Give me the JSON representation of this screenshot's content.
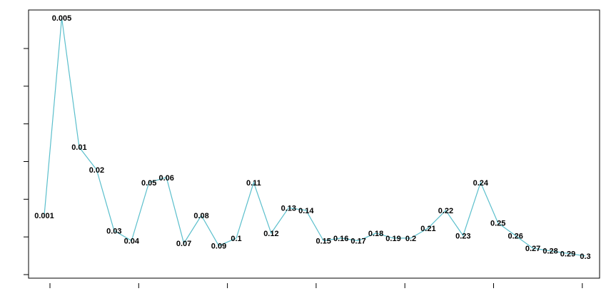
{
  "chart_data": {
    "type": "line",
    "title": "",
    "xlabel": "",
    "ylabel": "",
    "grid": false,
    "legend": "none",
    "axis_tick_labels_visible": false,
    "line_color": "#5bbfcc",
    "xlim": [
      0,
      31
    ],
    "ylim": [
      0,
      1
    ],
    "x_ticks": [
      0,
      5,
      10,
      15,
      20,
      25,
      30
    ],
    "y_ticks": [
      0.06,
      0.2,
      0.34,
      0.48,
      0.62,
      0.76,
      0.9
    ],
    "series": [
      {
        "labels": [
          "0.001",
          "0.005",
          "0.01",
          "0.02",
          "0.03",
          "0.04",
          "0.05",
          "0.06",
          "0.07",
          "0.08",
          "0.09",
          "0.1",
          "0.11",
          "0.12",
          "0.13",
          "0.14",
          "0.15",
          "0.16",
          "0.17",
          "0.18",
          "0.19",
          "0.2",
          "0.21",
          "0.22",
          "0.23",
          "0.24",
          "0.25",
          "0.26",
          "0.27",
          "0.28",
          "0.29",
          "0.3"
        ],
        "x": [
          0,
          1,
          2,
          3,
          4,
          5,
          6,
          7,
          8,
          9,
          10,
          11,
          12,
          13,
          14,
          15,
          16,
          17,
          18,
          19,
          20,
          21,
          22,
          23,
          24,
          25,
          26,
          27,
          28,
          29,
          30,
          31
        ],
        "y": [
          0.2,
          0.98,
          0.47,
          0.38,
          0.14,
          0.1,
          0.33,
          0.35,
          0.09,
          0.2,
          0.08,
          0.11,
          0.33,
          0.13,
          0.23,
          0.22,
          0.1,
          0.11,
          0.1,
          0.13,
          0.11,
          0.11,
          0.15,
          0.22,
          0.12,
          0.33,
          0.17,
          0.12,
          0.07,
          0.06,
          0.05,
          0.04
        ]
      }
    ]
  }
}
